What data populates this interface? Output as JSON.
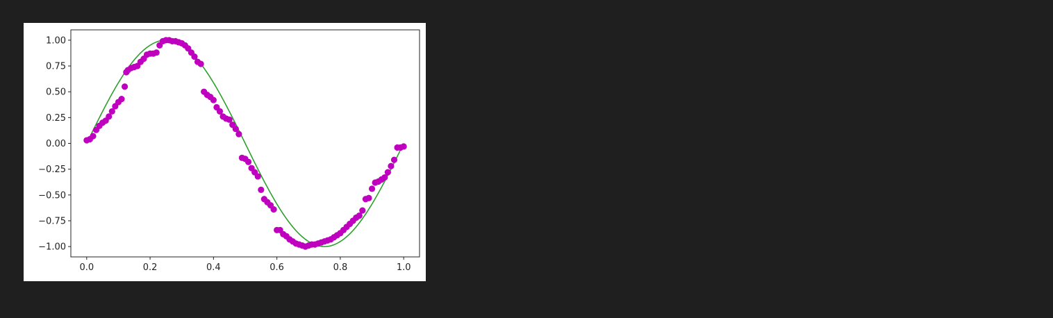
{
  "chart_data": {
    "type": "scatter",
    "title": "",
    "xlabel": "",
    "ylabel": "",
    "xlim": [
      -0.05,
      1.05
    ],
    "ylim": [
      -1.1,
      1.1
    ],
    "grid": false,
    "x_ticks": [
      0.0,
      0.2,
      0.4,
      0.6,
      0.8,
      1.0
    ],
    "x_tick_labels": [
      "0.0",
      "0.2",
      "0.4",
      "0.6",
      "0.8",
      "1.0"
    ],
    "y_ticks": [
      1.0,
      0.75,
      0.5,
      0.25,
      0.0,
      -0.25,
      -0.5,
      -0.75,
      -1.0
    ],
    "y_tick_labels": [
      "1.00",
      "0.75",
      "0.50",
      "0.25",
      "0.00",
      "−0.25",
      "−0.50",
      "−0.75",
      "−1.00"
    ],
    "series": [
      {
        "kind": "scatter",
        "color": "#bf00bf",
        "x": [
          0.0,
          0.01,
          0.02,
          0.03,
          0.04,
          0.05,
          0.06,
          0.07,
          0.08,
          0.09,
          0.1,
          0.11,
          0.12,
          0.125,
          0.13,
          0.14,
          0.15,
          0.16,
          0.17,
          0.18,
          0.19,
          0.2,
          0.21,
          0.22,
          0.23,
          0.24,
          0.25,
          0.26,
          0.27,
          0.28,
          0.29,
          0.3,
          0.31,
          0.32,
          0.33,
          0.34,
          0.35,
          0.36,
          0.37,
          0.38,
          0.39,
          0.4,
          0.41,
          0.42,
          0.43,
          0.44,
          0.45,
          0.46,
          0.47,
          0.48,
          0.49,
          0.5,
          0.51,
          0.52,
          0.53,
          0.54,
          0.55,
          0.56,
          0.57,
          0.58,
          0.59,
          0.6,
          0.61,
          0.62,
          0.63,
          0.64,
          0.65,
          0.66,
          0.67,
          0.68,
          0.69,
          0.7,
          0.71,
          0.72,
          0.73,
          0.74,
          0.75,
          0.76,
          0.77,
          0.78,
          0.79,
          0.8,
          0.81,
          0.82,
          0.83,
          0.84,
          0.85,
          0.86,
          0.87,
          0.88,
          0.89,
          0.9,
          0.91,
          0.92,
          0.93,
          0.94,
          0.95,
          0.96,
          0.97,
          0.98,
          0.99,
          1.0
        ],
        "y": [
          0.03,
          0.04,
          0.07,
          0.13,
          0.17,
          0.2,
          0.22,
          0.26,
          0.31,
          0.36,
          0.4,
          0.43,
          0.55,
          0.69,
          0.71,
          0.73,
          0.74,
          0.75,
          0.79,
          0.82,
          0.86,
          0.87,
          0.87,
          0.88,
          0.95,
          0.99,
          1.0,
          1.0,
          0.99,
          0.99,
          0.98,
          0.97,
          0.95,
          0.92,
          0.88,
          0.84,
          0.79,
          0.77,
          0.5,
          0.47,
          0.45,
          0.42,
          0.35,
          0.31,
          0.26,
          0.24,
          0.23,
          0.18,
          0.14,
          0.09,
          -0.14,
          -0.15,
          -0.18,
          -0.24,
          -0.28,
          -0.32,
          -0.45,
          -0.54,
          -0.57,
          -0.6,
          -0.64,
          -0.84,
          -0.84,
          -0.88,
          -0.9,
          -0.93,
          -0.95,
          -0.97,
          -0.98,
          -0.99,
          -1.0,
          -0.99,
          -0.98,
          -0.98,
          -0.97,
          -0.96,
          -0.95,
          -0.94,
          -0.93,
          -0.91,
          -0.89,
          -0.87,
          -0.84,
          -0.81,
          -0.78,
          -0.75,
          -0.72,
          -0.7,
          -0.65,
          -0.54,
          -0.53,
          -0.44,
          -0.38,
          -0.37,
          -0.35,
          -0.33,
          -0.28,
          -0.22,
          -0.16,
          -0.04,
          -0.04,
          -0.03
        ]
      },
      {
        "kind": "line",
        "color": "#2ca02c",
        "function": "sin(2*pi*x)",
        "x_range": [
          0.0,
          1.0
        ]
      }
    ]
  }
}
